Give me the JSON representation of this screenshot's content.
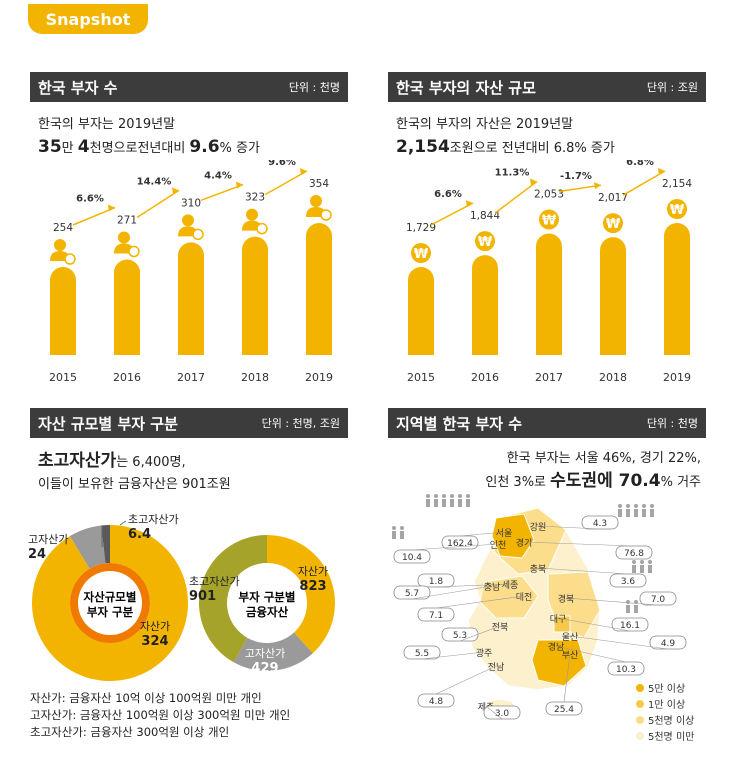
{
  "badge": "Snapshot",
  "panel1": {
    "title": "한국 부자 수",
    "unit": "단위 : 천명",
    "line1": "한국의 부자는 2019년말",
    "l2_a": "35",
    "l2_b": "만 ",
    "l2_c": "4",
    "l2_d": "천명으로전년대비 ",
    "l2_e": "9.6",
    "l2_f": "% 증가"
  },
  "panel2": {
    "title": "한국 부자의 자산 규모",
    "unit": "단위 : 조원",
    "line1": "한국의 부자의 자산은 2019년말",
    "l2_a": "2,154",
    "l2_b": "조원으로 전년대비 6.8% 증가"
  },
  "panel3": {
    "title": "자산 규모별 부자 구분",
    "unit": "단위 : 천명, 조원",
    "l1_a": "초고자산가",
    "l1_b": "는 6,400명,",
    "line2": "이들이 보유한 금융자산은 901조원",
    "notes": [
      "자산가: 금융자산 10억 이상 100억원 미만 개인",
      "고자산가: 금융자산 100억원 이상 300억원 미만 개인",
      "초고자산가: 금융자산 300억원 이상 개인"
    ]
  },
  "panel4": {
    "title": "지역별 한국 부자 수",
    "unit": "단위 : 천명",
    "line1": "한국 부자는 서울 46%, 경기 22%,",
    "l2_a": "인천 3%로 ",
    "l2_b": "수도권에 70.4",
    "l2_c": "% 거주"
  },
  "chart_data": [
    {
      "type": "bar",
      "title": "한국 부자 수",
      "unit": "천명",
      "categories": [
        "2015",
        "2016",
        "2017",
        "2018",
        "2019"
      ],
      "values": [
        254,
        271,
        310,
        323,
        354
      ],
      "value_labels": [
        "254",
        "271",
        "310",
        "323",
        "354"
      ],
      "growth_labels": [
        "6.6%",
        "14.4%",
        "4.4%",
        "9.6%"
      ],
      "colors": {
        "bar": "#f3b400",
        "icon": "#f3b400"
      }
    },
    {
      "type": "bar",
      "title": "한국 부자의 자산 규모",
      "unit": "조원",
      "categories": [
        "2015",
        "2016",
        "2017",
        "2018",
        "2019"
      ],
      "values": [
        1729,
        1844,
        2053,
        2017,
        2154
      ],
      "value_labels": [
        "1,729",
        "1,844",
        "2,053",
        "2,017",
        "2,154"
      ],
      "growth_labels": [
        "6.6%",
        "11.3%",
        "-1.7%",
        "6.8%"
      ],
      "colors": {
        "bar": "#f3b400",
        "icon": "#f3b400"
      }
    },
    {
      "type": "pie",
      "title": "자산규모별 부자 구분",
      "center": [
        "자산규모별",
        "부자 구분"
      ],
      "slices": [
        {
          "label": "자산가",
          "value": 324,
          "display": "324",
          "color": "#f3b400"
        },
        {
          "label": "고자산가",
          "value": 24,
          "display": "24",
          "color": "#9a9a9a"
        },
        {
          "label": "초고자산가",
          "value": 6.4,
          "display": "6.4",
          "color": "#5a5a5a"
        }
      ]
    },
    {
      "type": "pie",
      "title": "부자 구분별 금융자산",
      "center": [
        "부자 구분별",
        "금융자산"
      ],
      "slices": [
        {
          "label": "자산가",
          "value": 823,
          "display": "823",
          "color": "#f3b400"
        },
        {
          "label": "고자산가",
          "value": 429,
          "display": "429",
          "color": "#9a9a9a"
        },
        {
          "label": "초고자산가",
          "value": 901,
          "display": "901",
          "color": "#a5a32a"
        }
      ]
    }
  ],
  "map": {
    "regions": [
      {
        "name": "강원",
        "value": "4.3"
      },
      {
        "name": "서울",
        "value": "162.4"
      },
      {
        "name": "경기",
        "value": "76.8"
      },
      {
        "name": "인천",
        "value": "10.4"
      },
      {
        "name": "충북",
        "value": "3.6"
      },
      {
        "name": "세종",
        "value": "1.8"
      },
      {
        "name": "충남",
        "value": "5.7"
      },
      {
        "name": "대전",
        "value": "7.1"
      },
      {
        "name": "경북",
        "value": "7.0"
      },
      {
        "name": "전북",
        "value": "5.3"
      },
      {
        "name": "대구",
        "value": "16.1"
      },
      {
        "name": "울산",
        "value": "4.9"
      },
      {
        "name": "광주",
        "value": "5.5"
      },
      {
        "name": "경남",
        "value": "10.3"
      },
      {
        "name": "부산",
        "value": "25.4"
      },
      {
        "name": "전남",
        "value": "4.8"
      },
      {
        "name": "제주",
        "value": "3.0"
      }
    ],
    "legend": [
      {
        "label": "5만 이상",
        "color": "#f3b400"
      },
      {
        "label": "1만 이상",
        "color": "#f7c94a"
      },
      {
        "label": "5천명 이상",
        "color": "#fbdd8c"
      },
      {
        "label": "5천명 미만",
        "color": "#fdf0cc"
      }
    ]
  }
}
